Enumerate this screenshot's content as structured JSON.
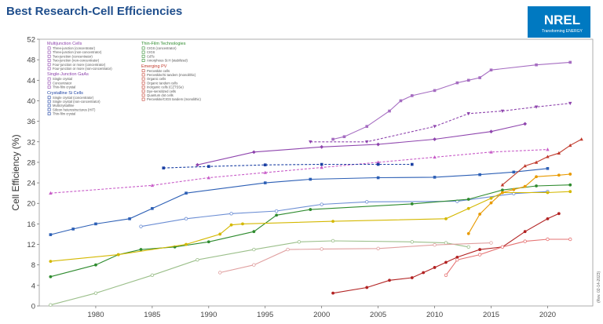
{
  "header": {
    "title": "Best Research-Cell Efficiencies"
  },
  "logo": {
    "text": "NREL",
    "subtext": "Transforming ENERGY",
    "color": "#0079c1"
  },
  "revision_note": "(Rev. 02-14-2023)",
  "chart_data": {
    "type": "line",
    "title": "Best Research-Cell Efficiencies",
    "ylabel": "Cell Efficiency (%)",
    "xlabel": "",
    "xlim": [
      1975,
      2024
    ],
    "ylim": [
      0,
      52
    ],
    "xticks": [
      1980,
      1985,
      1990,
      1995,
      2000,
      2005,
      2010,
      2015,
      2020
    ],
    "yticks": [
      0,
      4,
      8,
      12,
      16,
      20,
      24,
      28,
      32,
      36,
      40,
      44,
      48,
      52
    ],
    "grid": false,
    "legend_position": "top-left",
    "legend_groups": [
      {
        "heading": "Multijunction Cells",
        "color": "#8e44ad",
        "items": [
          "Three-junction (concentrator)",
          "Three-junction (non-concentrator)",
          "Two-junction (concentrator)",
          "Two-junction (non-concentrator)",
          "Four-junction or more (concentrator)",
          "Four-junction or more (non-concentrator)"
        ]
      },
      {
        "heading": "Single-Junction GaAs",
        "color": "#8e44ad",
        "items": [
          "Single crystal",
          "Concentrator",
          "Thin-film crystal"
        ]
      },
      {
        "heading": "Crystalline Si Cells",
        "color": "#1a3fa3",
        "items": [
          "Single crystal (concentrator)",
          "Single crystal (non-concentrator)",
          "Multicrystalline",
          "Silicon heterostructures (HIT)",
          "Thin-film crystal"
        ]
      },
      {
        "heading": "Thin-Film Technologies",
        "color": "#2e8b2e",
        "items": [
          "CIGS (concentrator)",
          "CIGS",
          "CdTe",
          "Amorphous Si:H (stabilized)"
        ]
      },
      {
        "heading": "Emerging PV",
        "color": "#c0392b",
        "items": [
          "Perovskite cells",
          "Perovskite/Si tandem (monolithic)",
          "Organic cells",
          "Organic tandem cells",
          "Inorganic cells (CZTSSe)",
          "Dye-sensitized cells",
          "Quantum dot cells",
          "Perovskite/CIGS tandem (monolithic)"
        ]
      }
    ],
    "series": [
      {
        "color": "#a56cc1",
        "marker": "square",
        "dash": false,
        "x": [
          2001,
          2002,
          2004,
          2006,
          2007,
          2008,
          2010,
          2012,
          2013,
          2014,
          2015,
          2019,
          2022
        ],
        "y": [
          32.5,
          33,
          35,
          38,
          40,
          41,
          42,
          43.5,
          44,
          44.5,
          46,
          47,
          47.5
        ]
      },
      {
        "color": "#8e44ad",
        "marker": "triangle-down",
        "dash": true,
        "x": [
          1999,
          2004,
          2010,
          2013,
          2016,
          2019,
          2022
        ],
        "y": [
          32,
          32,
          35,
          37.5,
          38,
          38.8,
          39.5
        ]
      },
      {
        "color": "#8e44ad",
        "marker": "diamond",
        "dash": false,
        "x": [
          1989,
          1994,
          2000,
          2005,
          2010,
          2015,
          2018
        ],
        "y": [
          27.5,
          30,
          31,
          31.5,
          32.5,
          34,
          35.5
        ]
      },
      {
        "color": "#c85cc8",
        "marker": "triangle-up",
        "dash": true,
        "x": [
          1976,
          1985,
          1990,
          1995,
          2000,
          2005,
          2010,
          2015,
          2020
        ],
        "y": [
          22,
          23.5,
          25,
          26,
          27,
          28,
          29,
          30,
          30.5
        ]
      },
      {
        "color": "#2c5fb5",
        "marker": "square",
        "dash": false,
        "x": [
          1976,
          1978,
          1980,
          1983,
          1985,
          1988,
          1995,
          1999,
          2005,
          2010,
          2014,
          2017,
          2020
        ],
        "y": [
          13.9,
          15,
          16,
          17,
          19,
          22,
          24,
          24.7,
          25,
          25.1,
          25.6,
          26.1,
          26.8
        ]
      },
      {
        "color": "#1a3fa3",
        "marker": "square",
        "dash": true,
        "x": [
          1986,
          1990,
          1995,
          2000,
          2005,
          2008
        ],
        "y": [
          26.9,
          27.2,
          27.5,
          27.6,
          27.6,
          27.6
        ]
      },
      {
        "color": "#6c8ed4",
        "marker": "circle-open",
        "dash": false,
        "x": [
          1984,
          1988,
          1992,
          1996,
          2000,
          2004,
          2012,
          2017,
          2020
        ],
        "y": [
          15.5,
          17,
          18,
          18.5,
          19.8,
          20.3,
          20.4,
          21.9,
          22.3
        ]
      },
      {
        "color": "#2e8b2e",
        "marker": "circle",
        "dash": false,
        "x": [
          1976,
          1980,
          1982,
          1984,
          1987,
          1990,
          1994,
          1996,
          1999,
          2008,
          2013,
          2016,
          2019,
          2022
        ],
        "y": [
          5.7,
          8,
          10,
          11,
          11.5,
          12.5,
          14.5,
          17.7,
          18.8,
          19.9,
          20.8,
          22.6,
          23.4,
          23.6
        ]
      },
      {
        "color": "#d4b800",
        "marker": "circle",
        "dash": false,
        "x": [
          1976,
          1982,
          1988,
          1991,
          1992,
          1993,
          2001,
          2011,
          2013,
          2015,
          2016,
          2020,
          2022
        ],
        "y": [
          8.7,
          10,
          12,
          14,
          15.8,
          16,
          16.5,
          17,
          19,
          21,
          22.1,
          22.1,
          22.3
        ]
      },
      {
        "color": "#9bbf8a",
        "marker": "circle-open",
        "dash": false,
        "x": [
          1976,
          1980,
          1985,
          1989,
          1994,
          1998,
          2001,
          2008,
          2011,
          2013
        ],
        "y": [
          0.2,
          2.5,
          6,
          9,
          11,
          12.5,
          12.7,
          12.5,
          12.3,
          11.5
        ]
      },
      {
        "color": "#e0a0a0",
        "marker": "circle-open",
        "dash": false,
        "x": [
          1991,
          1994,
          1997,
          2000,
          2005,
          2010,
          2015
        ],
        "y": [
          6.5,
          8,
          11,
          11.1,
          11.2,
          11.9,
          12.3
        ]
      },
      {
        "color": "#b22222",
        "marker": "circle",
        "dash": false,
        "x": [
          2001,
          2004,
          2006,
          2008,
          2009,
          2010,
          2011,
          2012,
          2014,
          2016,
          2018,
          2020,
          2021
        ],
        "y": [
          2.5,
          3.6,
          5,
          5.5,
          6.5,
          7.5,
          8.5,
          9.5,
          11,
          11.5,
          14.5,
          17,
          18
        ]
      },
      {
        "color": "#e89a00",
        "marker": "circle",
        "dash": false,
        "x": [
          2013,
          2014,
          2015,
          2016,
          2017,
          2018,
          2019,
          2021,
          2022
        ],
        "y": [
          14.1,
          17.9,
          20.1,
          22.1,
          22.7,
          23.3,
          25.2,
          25.5,
          25.7
        ]
      },
      {
        "color": "#c0392b",
        "marker": "triangle-up",
        "dash": false,
        "x": [
          2016,
          2018,
          2019,
          2020,
          2021,
          2022,
          2023
        ],
        "y": [
          23.6,
          27.3,
          28,
          29.1,
          29.8,
          31.3,
          32.5
        ]
      },
      {
        "color": "#e57373",
        "marker": "circle-open",
        "dash": false,
        "x": [
          2011,
          2012,
          2014,
          2016,
          2018,
          2020,
          2022
        ],
        "y": [
          6,
          9,
          10,
          11.5,
          12.6,
          13,
          13
        ]
      }
    ]
  }
}
